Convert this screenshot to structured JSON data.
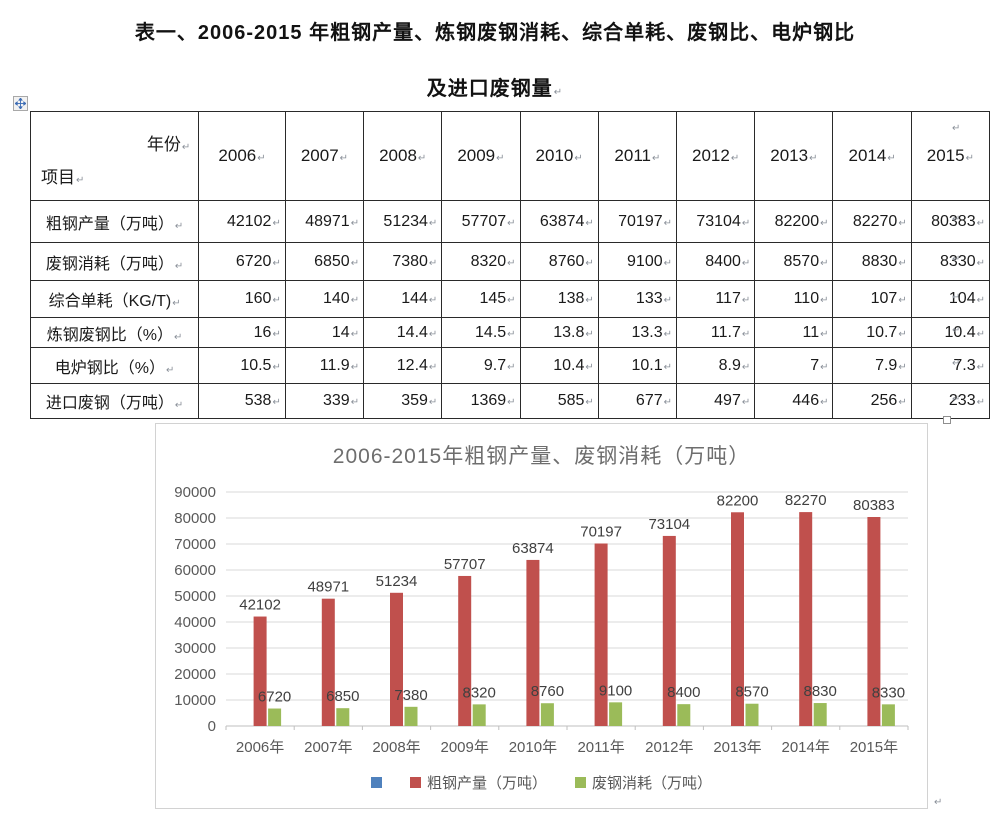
{
  "document": {
    "title_line1": "表一、2006-2015 年粗钢产量、炼钢废钢消耗、综合单耗、废钢比、电炉钢比",
    "title_line2": "及进口废钢量",
    "paragraph_mark": "↵"
  },
  "table": {
    "corner": {
      "year_label": "年份",
      "item_label": "项目"
    },
    "years": [
      "2006",
      "2007",
      "2008",
      "2009",
      "2010",
      "2011",
      "2012",
      "2013",
      "2014",
      "2015"
    ],
    "rows": [
      {
        "label": "粗钢产量（万吨）",
        "values": [
          "42102",
          "48971",
          "51234",
          "57707",
          "63874",
          "70197",
          "73104",
          "82200",
          "82270",
          "80383"
        ]
      },
      {
        "label": "废钢消耗（万吨）",
        "values": [
          "6720",
          "6850",
          "7380",
          "8320",
          "8760",
          "9100",
          "8400",
          "8570",
          "8830",
          "8330"
        ]
      },
      {
        "label": "综合单耗（KG/T)",
        "values": [
          "160",
          "140",
          "144",
          "145",
          "138",
          "133",
          "117",
          "110",
          "107",
          "104"
        ]
      },
      {
        "label": "炼钢废钢比（%）",
        "values": [
          "16",
          "14",
          "14.4",
          "14.5",
          "13.8",
          "13.3",
          "11.7",
          "11",
          "10.7",
          "10.4"
        ]
      },
      {
        "label": "电炉钢比（%）",
        "values": [
          "10.5",
          "11.9",
          "12.4",
          "9.7",
          "10.4",
          "10.1",
          "8.9",
          "7",
          "7.9",
          "7.3"
        ]
      },
      {
        "label": "进口废钢（万吨）",
        "values": [
          "538",
          "339",
          "359",
          "1369",
          "585",
          "677",
          "497",
          "446",
          "256",
          "233"
        ]
      }
    ]
  },
  "chart_data": {
    "type": "bar",
    "title": "2006-2015年粗钢产量、废钢消耗（万吨）",
    "categories": [
      "2006年",
      "2007年",
      "2008年",
      "2009年",
      "2010年",
      "2011年",
      "2012年",
      "2013年",
      "2014年",
      "2015年"
    ],
    "series": [
      {
        "name": "",
        "color": "#4F81BD",
        "legend_only": true,
        "values": []
      },
      {
        "name": "粗钢产量（万吨）",
        "color": "#C0504D",
        "values": [
          42102,
          48971,
          51234,
          57707,
          63874,
          70197,
          73104,
          82200,
          82270,
          80383
        ]
      },
      {
        "name": "废钢消耗（万吨）",
        "color": "#9BBB59",
        "values": [
          6720,
          6850,
          7380,
          8320,
          8760,
          9100,
          8400,
          8570,
          8830,
          8330
        ]
      }
    ],
    "ylim": [
      0,
      90000
    ],
    "yticks": [
      0,
      10000,
      20000,
      30000,
      40000,
      50000,
      60000,
      70000,
      80000,
      90000
    ],
    "grid": true,
    "data_labels": true,
    "legend_position": "bottom",
    "colors": {
      "gridline": "#D9D9D9",
      "axis_line": "#BFBFBF",
      "axis_text": "#595959",
      "label_text": "#404040",
      "title_text": "#6E6E6E"
    }
  }
}
